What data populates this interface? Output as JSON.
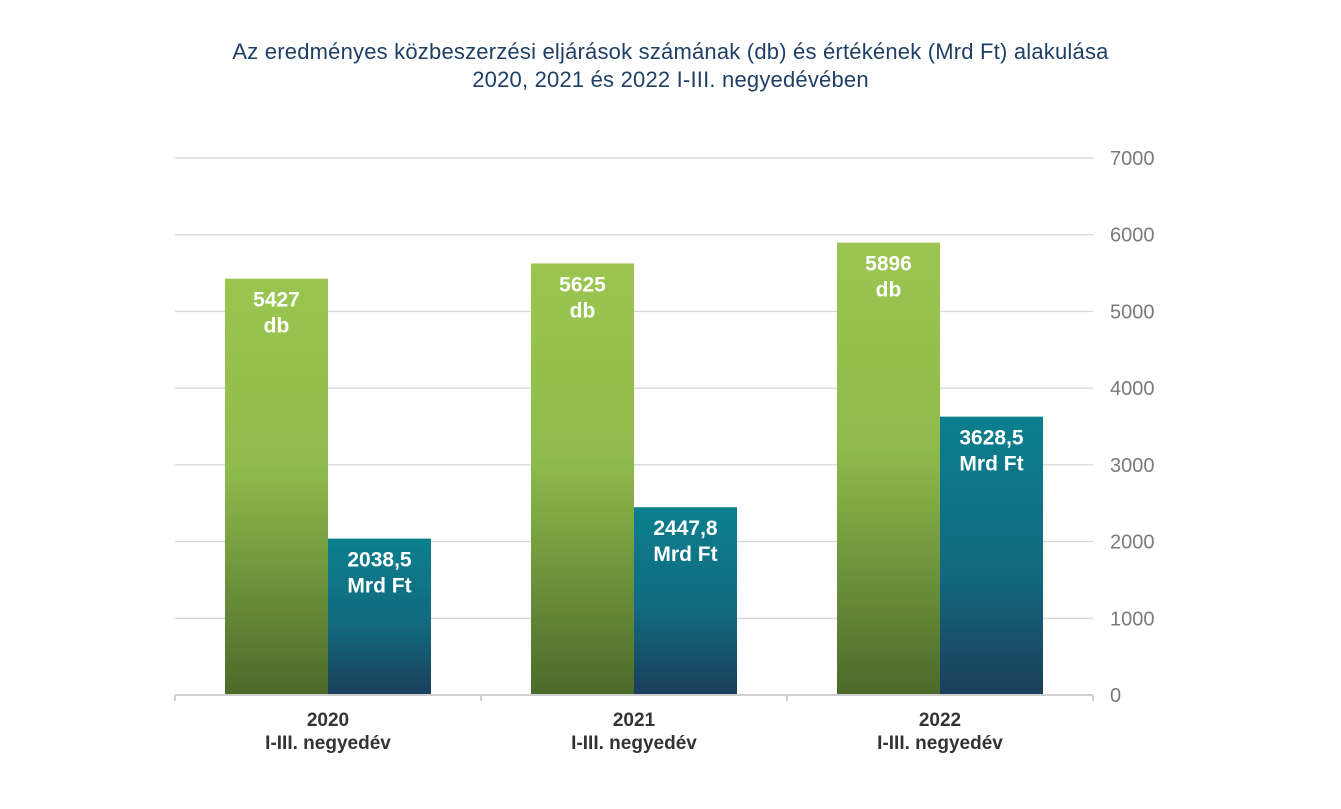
{
  "chart_data": {
    "type": "bar",
    "title_lines": [
      "Az eredményes közbeszerzési eljárások számának (db) és értékének (Mrd Ft) alakulása",
      "2020, 2021 és 2022 I-III. negyedévében"
    ],
    "categories": [
      [
        "2020",
        "I-III. negyedév"
      ],
      [
        "2021",
        "I-III. negyedév"
      ],
      [
        "2022",
        "I-III. negyedév"
      ]
    ],
    "series": [
      {
        "values": [
          5427,
          5625,
          5896
        ],
        "labels": [
          [
            "5427",
            "db"
          ],
          [
            "5625",
            "db"
          ],
          [
            "5896",
            "db"
          ]
        ],
        "color_top": "#9bc550",
        "color_bottom": "#4b6a2a"
      },
      {
        "values": [
          2038.5,
          2447.8,
          3628.5
        ],
        "labels": [
          [
            "2038,5",
            "Mrd Ft"
          ],
          [
            "2447,8",
            "Mrd Ft"
          ],
          [
            "3628,5",
            "Mrd Ft"
          ]
        ],
        "color_top": "#0b7f8e",
        "color_bottom": "#1b3e5b"
      }
    ],
    "yaxis": {
      "position": "right",
      "ticks": [
        "0",
        "1000",
        "2000",
        "3000",
        "4000",
        "5000",
        "6000",
        "7000"
      ]
    },
    "ylim": [
      0,
      7000
    ],
    "grid": true,
    "legend": "none"
  }
}
